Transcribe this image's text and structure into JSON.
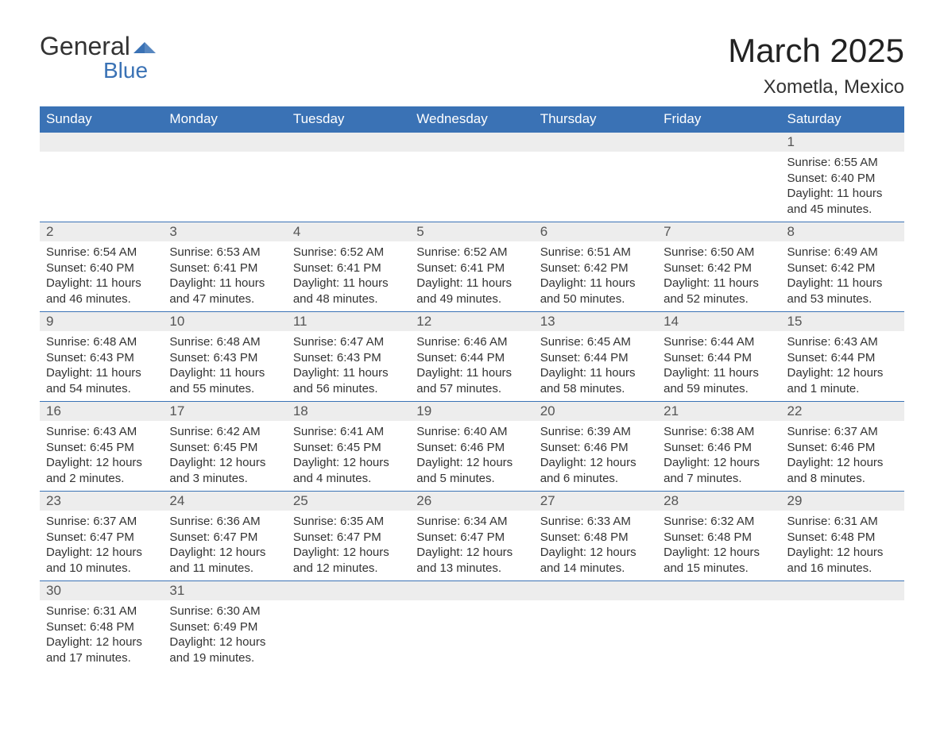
{
  "logo": {
    "word1": "General",
    "word2": "Blue",
    "shape_color": "#3a72b5"
  },
  "title": "March 2025",
  "location": "Xometla, Mexico",
  "colors": {
    "header_bg": "#3a72b5",
    "header_text": "#ffffff",
    "daynum_bg": "#ededed",
    "row_border": "#3a72b5",
    "text": "#333333"
  },
  "day_headers": [
    "Sunday",
    "Monday",
    "Tuesday",
    "Wednesday",
    "Thursday",
    "Friday",
    "Saturday"
  ],
  "weeks": [
    [
      null,
      null,
      null,
      null,
      null,
      null,
      {
        "n": "1",
        "sunrise": "6:55 AM",
        "sunset": "6:40 PM",
        "daylight": "11 hours and 45 minutes."
      }
    ],
    [
      {
        "n": "2",
        "sunrise": "6:54 AM",
        "sunset": "6:40 PM",
        "daylight": "11 hours and 46 minutes."
      },
      {
        "n": "3",
        "sunrise": "6:53 AM",
        "sunset": "6:41 PM",
        "daylight": "11 hours and 47 minutes."
      },
      {
        "n": "4",
        "sunrise": "6:52 AM",
        "sunset": "6:41 PM",
        "daylight": "11 hours and 48 minutes."
      },
      {
        "n": "5",
        "sunrise": "6:52 AM",
        "sunset": "6:41 PM",
        "daylight": "11 hours and 49 minutes."
      },
      {
        "n": "6",
        "sunrise": "6:51 AM",
        "sunset": "6:42 PM",
        "daylight": "11 hours and 50 minutes."
      },
      {
        "n": "7",
        "sunrise": "6:50 AM",
        "sunset": "6:42 PM",
        "daylight": "11 hours and 52 minutes."
      },
      {
        "n": "8",
        "sunrise": "6:49 AM",
        "sunset": "6:42 PM",
        "daylight": "11 hours and 53 minutes."
      }
    ],
    [
      {
        "n": "9",
        "sunrise": "6:48 AM",
        "sunset": "6:43 PM",
        "daylight": "11 hours and 54 minutes."
      },
      {
        "n": "10",
        "sunrise": "6:48 AM",
        "sunset": "6:43 PM",
        "daylight": "11 hours and 55 minutes."
      },
      {
        "n": "11",
        "sunrise": "6:47 AM",
        "sunset": "6:43 PM",
        "daylight": "11 hours and 56 minutes."
      },
      {
        "n": "12",
        "sunrise": "6:46 AM",
        "sunset": "6:44 PM",
        "daylight": "11 hours and 57 minutes."
      },
      {
        "n": "13",
        "sunrise": "6:45 AM",
        "sunset": "6:44 PM",
        "daylight": "11 hours and 58 minutes."
      },
      {
        "n": "14",
        "sunrise": "6:44 AM",
        "sunset": "6:44 PM",
        "daylight": "11 hours and 59 minutes."
      },
      {
        "n": "15",
        "sunrise": "6:43 AM",
        "sunset": "6:44 PM",
        "daylight": "12 hours and 1 minute."
      }
    ],
    [
      {
        "n": "16",
        "sunrise": "6:43 AM",
        "sunset": "6:45 PM",
        "daylight": "12 hours and 2 minutes."
      },
      {
        "n": "17",
        "sunrise": "6:42 AM",
        "sunset": "6:45 PM",
        "daylight": "12 hours and 3 minutes."
      },
      {
        "n": "18",
        "sunrise": "6:41 AM",
        "sunset": "6:45 PM",
        "daylight": "12 hours and 4 minutes."
      },
      {
        "n": "19",
        "sunrise": "6:40 AM",
        "sunset": "6:46 PM",
        "daylight": "12 hours and 5 minutes."
      },
      {
        "n": "20",
        "sunrise": "6:39 AM",
        "sunset": "6:46 PM",
        "daylight": "12 hours and 6 minutes."
      },
      {
        "n": "21",
        "sunrise": "6:38 AM",
        "sunset": "6:46 PM",
        "daylight": "12 hours and 7 minutes."
      },
      {
        "n": "22",
        "sunrise": "6:37 AM",
        "sunset": "6:46 PM",
        "daylight": "12 hours and 8 minutes."
      }
    ],
    [
      {
        "n": "23",
        "sunrise": "6:37 AM",
        "sunset": "6:47 PM",
        "daylight": "12 hours and 10 minutes."
      },
      {
        "n": "24",
        "sunrise": "6:36 AM",
        "sunset": "6:47 PM",
        "daylight": "12 hours and 11 minutes."
      },
      {
        "n": "25",
        "sunrise": "6:35 AM",
        "sunset": "6:47 PM",
        "daylight": "12 hours and 12 minutes."
      },
      {
        "n": "26",
        "sunrise": "6:34 AM",
        "sunset": "6:47 PM",
        "daylight": "12 hours and 13 minutes."
      },
      {
        "n": "27",
        "sunrise": "6:33 AM",
        "sunset": "6:48 PM",
        "daylight": "12 hours and 14 minutes."
      },
      {
        "n": "28",
        "sunrise": "6:32 AM",
        "sunset": "6:48 PM",
        "daylight": "12 hours and 15 minutes."
      },
      {
        "n": "29",
        "sunrise": "6:31 AM",
        "sunset": "6:48 PM",
        "daylight": "12 hours and 16 minutes."
      }
    ],
    [
      {
        "n": "30",
        "sunrise": "6:31 AM",
        "sunset": "6:48 PM",
        "daylight": "12 hours and 17 minutes."
      },
      {
        "n": "31",
        "sunrise": "6:30 AM",
        "sunset": "6:49 PM",
        "daylight": "12 hours and 19 minutes."
      },
      null,
      null,
      null,
      null,
      null
    ]
  ],
  "labels": {
    "sunrise": "Sunrise:",
    "sunset": "Sunset:",
    "daylight": "Daylight:"
  }
}
